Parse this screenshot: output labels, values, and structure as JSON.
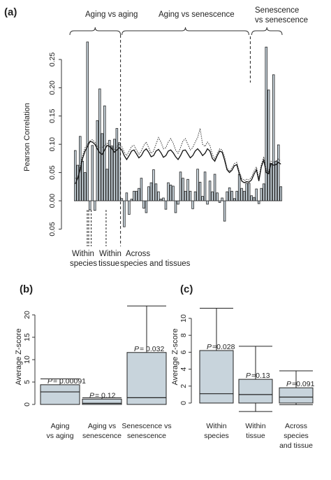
{
  "chart_data": [
    {
      "panel": "(a)",
      "type": "bar",
      "ylabel": "Pearson Correlation",
      "yticks_upper": [
        "0.00",
        "0.05",
        "0.10",
        "0.15",
        "0.20",
        "0.25"
      ],
      "yticks_lower": [
        "0.05"
      ],
      "ylim": [
        -0.065,
        0.28
      ],
      "group_labels": [
        "Aging vs aging",
        "Aging vs senescence",
        "Senescence",
        "vs senescence"
      ],
      "sub_labels": [
        "Within",
        "species",
        "Within",
        "tissue",
        "Across",
        "species and tissues"
      ],
      "values": [
        0.089,
        0.063,
        0.114,
        0.07,
        0.05,
        0.281,
        -0.016,
        0.098,
        -0.017,
        0.142,
        0.198,
        0.119,
        0.168,
        0.056,
        0.107,
        0.097,
        0.109,
        0.128,
        0.103,
        0.004,
        -0.046,
        0.014,
        -0.024,
        0.003,
        0.017,
        0.017,
        0.022,
        0.04,
        -0.013,
        -0.021,
        0.025,
        0.032,
        0.055,
        0.03,
        0.016,
        0.003,
        0.005,
        -0.015,
        0.032,
        0.028,
        0.026,
        -0.021,
        -0.006,
        0.051,
        0.04,
        0.017,
        0.038,
        0.017,
        -0.014,
        0.016,
        0.056,
        0.033,
        0.008,
        0.051,
        -0.006,
        0.035,
        0.016,
        0.047,
        0.014,
        -0.003,
        0.005,
        -0.036,
        0.016,
        0.023,
        0.017,
        0.004,
        0.017,
        0.047,
        0.022,
        0.017,
        0.031,
        0.031,
        0.009,
        0.006,
        0.021,
        -0.005,
        0.022,
        0.03,
        0.272,
        0.196,
        0.066,
        0.223,
        0.07,
        0.099,
        0.025
      ],
      "solid_line": [
        0.03,
        0.04,
        0.055,
        0.075,
        0.088,
        0.096,
        0.105,
        0.104,
        0.1,
        0.092,
        0.085,
        0.082,
        0.09,
        0.098,
        0.096,
        0.092,
        0.086,
        0.09,
        0.094,
        0.09,
        0.08,
        0.073,
        0.08,
        0.088,
        0.09,
        0.083,
        0.076,
        0.08,
        0.088,
        0.092,
        0.086,
        0.078,
        0.08,
        0.088,
        0.091,
        0.085,
        0.077,
        0.08,
        0.088,
        0.09,
        0.085,
        0.078,
        0.073,
        0.08,
        0.089,
        0.09,
        0.083,
        0.076,
        0.08,
        0.088,
        0.092,
        0.087,
        0.08,
        0.084,
        0.092,
        0.088,
        0.075,
        0.07,
        0.08,
        0.088,
        0.086,
        0.072,
        0.055,
        0.05,
        0.054,
        0.062,
        0.064,
        0.048,
        0.035,
        0.032,
        0.034,
        0.033,
        0.037,
        0.047,
        0.055,
        0.035,
        0.06,
        0.072,
        0.05,
        0.048,
        0.066,
        0.063,
        0.064,
        0.068,
        0.065
      ],
      "dotted_line": [
        0.04,
        0.04,
        0.06,
        0.08,
        0.094,
        0.1,
        0.106,
        0.108,
        0.104,
        0.096,
        0.094,
        0.094,
        0.098,
        0.102,
        0.098,
        0.094,
        0.09,
        0.096,
        0.1,
        0.096,
        0.086,
        0.08,
        0.088,
        0.096,
        0.098,
        0.09,
        0.082,
        0.088,
        0.098,
        0.104,
        0.094,
        0.084,
        0.088,
        0.1,
        0.112,
        0.104,
        0.092,
        0.094,
        0.104,
        0.11,
        0.102,
        0.09,
        0.084,
        0.094,
        0.106,
        0.11,
        0.1,
        0.09,
        0.094,
        0.104,
        0.112,
        0.128,
        0.1,
        0.096,
        0.104,
        0.098,
        0.082,
        0.074,
        0.084,
        0.092,
        0.09,
        0.078,
        0.058,
        0.052,
        0.058,
        0.066,
        0.068,
        0.052,
        0.04,
        0.036,
        0.038,
        0.037,
        0.042,
        0.052,
        0.06,
        0.04,
        0.064,
        0.078,
        0.055,
        0.052,
        0.07,
        0.068,
        0.07,
        0.074,
        0.07
      ]
    },
    {
      "panel": "(b)",
      "type": "box",
      "ylabel": "Average Z-score",
      "ylim": [
        -1,
        22
      ],
      "yticks": [
        "0",
        "5",
        "10",
        "15",
        "20"
      ],
      "categories": [
        [
          "Aging",
          "vs aging"
        ],
        [
          "Aging vs",
          "senescence"
        ],
        [
          "Senescence vs",
          "senescence"
        ]
      ],
      "boxes": [
        {
          "whisker_low": 0,
          "q1": 0,
          "median": 2.8,
          "q3": 4.4,
          "whisker_high": 5.7,
          "p_label": "P",
          "p_value": "= 0.00091"
        },
        {
          "whisker_low": 0,
          "q1": 0,
          "median": 0.25,
          "q3": 1.2,
          "whisker_high": 1.5,
          "p_label": "P",
          "p_value": "= 0.12"
        },
        {
          "whisker_low": 0,
          "q1": 0,
          "median": 1.5,
          "q3": 11.6,
          "whisker_high": 22.0,
          "p_label": "P",
          "p_value": "= 0.032"
        }
      ]
    },
    {
      "panel": "(c)",
      "type": "box",
      "ylabel": "Average Z-score",
      "ylim": [
        -1,
        11.5
      ],
      "yticks": [
        "0",
        "2",
        "4",
        "6",
        "8",
        "10"
      ],
      "categories": [
        [
          "Within",
          "species"
        ],
        [
          "Within",
          "tissue"
        ],
        [
          "Across",
          "species",
          "and tissue"
        ]
      ],
      "boxes": [
        {
          "whisker_low": 0,
          "q1": 0,
          "median": 1.1,
          "q3": 6.2,
          "whisker_high": 11.2,
          "p_label": "P",
          "p_value": "=0.028"
        },
        {
          "whisker_low": -1.0,
          "q1": 0,
          "median": 1.0,
          "q3": 2.8,
          "whisker_high": 6.7,
          "p_label": "P",
          "p_value": "=0.13"
        },
        {
          "whisker_low": -0.2,
          "q1": 0,
          "median": 0.7,
          "q3": 1.8,
          "whisker_high": 3.8,
          "p_label": "P",
          "p_value": "=0.091"
        }
      ]
    }
  ]
}
